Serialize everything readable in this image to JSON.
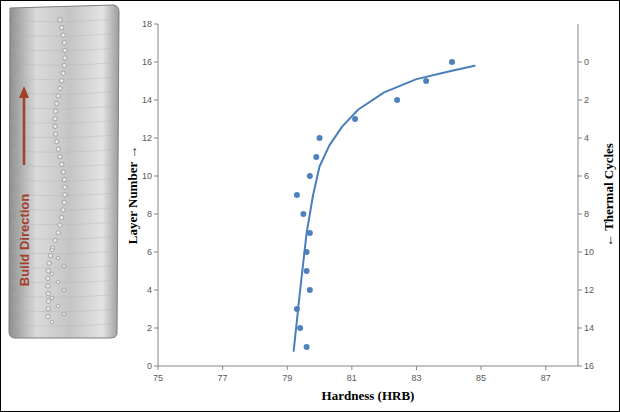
{
  "chart_data": {
    "type": "scatter",
    "x_label": "Hardness (HRB)",
    "y_label": "Layer Number →",
    "y2_label": "← Thermal Cycles",
    "xlim": [
      75,
      88
    ],
    "xticks": [
      75,
      77,
      79,
      81,
      83,
      85,
      87
    ],
    "ylim": [
      0,
      18
    ],
    "yticks": [
      0,
      2,
      4,
      6,
      8,
      10,
      12,
      14,
      16,
      18
    ],
    "y2lim": [
      16,
      -2
    ],
    "y2ticks": [
      0,
      2,
      4,
      6,
      8,
      10,
      12,
      14,
      16
    ],
    "grid": false,
    "series": [
      {
        "type": "scatter",
        "color": "#4f81bd",
        "marker": "circle",
        "x": [
          79.6,
          79.4,
          79.3,
          79.7,
          79.6,
          79.6,
          79.7,
          79.5,
          79.3,
          79.7,
          79.9,
          80.0,
          81.1,
          82.4,
          83.3,
          84.1
        ],
        "values": [
          1,
          2,
          3,
          4,
          5,
          6,
          7,
          8,
          9,
          10,
          11,
          12,
          13,
          14,
          15,
          16
        ]
      },
      {
        "type": "line",
        "color": "#4a7ebb",
        "line_style": "solid",
        "x": [
          79.2,
          79.4,
          79.6,
          79.8,
          80.0,
          80.3,
          80.7,
          81.2,
          82.0,
          83.0,
          84.0,
          84.8
        ],
        "values": [
          0.8,
          4,
          7,
          9,
          10.5,
          11.6,
          12.6,
          13.5,
          14.4,
          15.1,
          15.5,
          15.8
        ]
      }
    ]
  },
  "photo": {
    "label": "Build Direction"
  }
}
